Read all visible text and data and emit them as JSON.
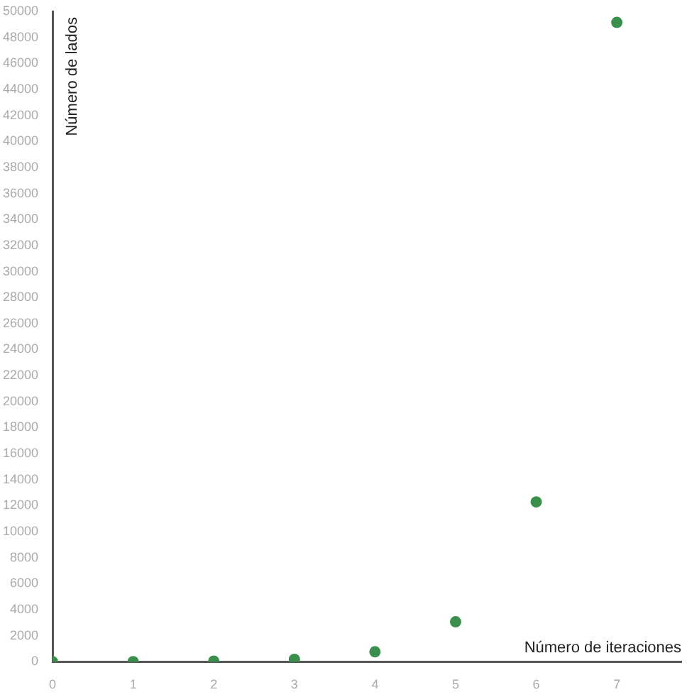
{
  "chart_data": {
    "type": "scatter",
    "xlabel": "Número de iteraciones",
    "ylabel": "Número de lados",
    "x": [
      0,
      1,
      2,
      3,
      4,
      5,
      6,
      7
    ],
    "series": [
      {
        "color": "#3a8f4c",
        "values": [
          3,
          12,
          48,
          192,
          768,
          3072,
          12288,
          49152
        ]
      }
    ],
    "xlim": [
      0,
      7.8
    ],
    "xticks": [
      0,
      1,
      2,
      3,
      4,
      5,
      6,
      7
    ],
    "ylim": [
      0,
      50000
    ],
    "yticks": [
      0,
      2000,
      4000,
      6000,
      8000,
      10000,
      12000,
      14000,
      16000,
      18000,
      20000,
      22000,
      24000,
      26000,
      28000,
      30000,
      32000,
      34000,
      36000,
      38000,
      40000,
      42000,
      44000,
      46000,
      48000,
      50000
    ],
    "grid": false,
    "legend": false,
    "marker": "circle"
  }
}
